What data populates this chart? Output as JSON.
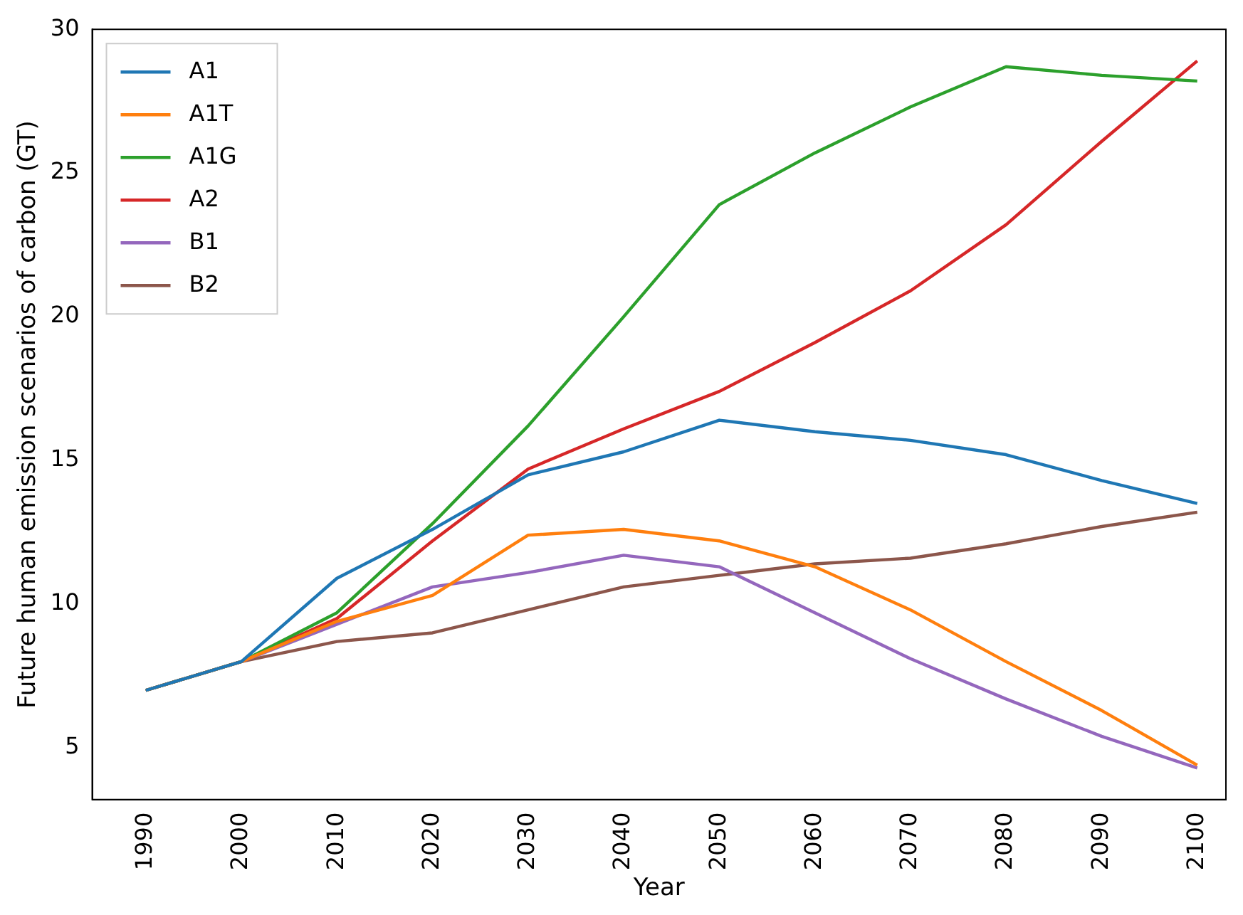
{
  "chart_data": {
    "type": "line",
    "xlabel": "Year",
    "ylabel": "Future human emission scenarios of carbon (GT)",
    "x": [
      1990,
      2000,
      2010,
      2020,
      2030,
      2040,
      2050,
      2060,
      2070,
      2080,
      2090,
      2100
    ],
    "series": [
      {
        "name": "A1",
        "color": "#1f77b4",
        "values": [
          7.0,
          8.0,
          10.9,
          12.6,
          14.5,
          15.3,
          16.4,
          16.0,
          15.7,
          15.2,
          14.3,
          13.5
        ]
      },
      {
        "name": "A1T",
        "color": "#ff7f0e",
        "values": [
          7.0,
          8.0,
          9.4,
          10.3,
          12.4,
          12.6,
          12.2,
          11.3,
          9.8,
          8.0,
          6.3,
          4.4
        ]
      },
      {
        "name": "A1G",
        "color": "#2ca02c",
        "values": [
          7.0,
          8.0,
          9.7,
          12.8,
          16.2,
          20.0,
          23.9,
          25.7,
          27.3,
          28.7,
          28.4,
          28.2
        ]
      },
      {
        "name": "A2",
        "color": "#d62728",
        "values": [
          7.0,
          8.0,
          9.5,
          12.2,
          14.7,
          16.1,
          17.4,
          19.1,
          20.9,
          23.2,
          26.1,
          28.9
        ]
      },
      {
        "name": "B1",
        "color": "#9467bd",
        "values": [
          7.0,
          8.0,
          9.3,
          10.6,
          11.1,
          11.7,
          11.3,
          9.7,
          8.1,
          6.7,
          5.4,
          4.3
        ]
      },
      {
        "name": "B2",
        "color": "#8c564b",
        "values": [
          7.0,
          8.0,
          8.7,
          9.0,
          9.8,
          10.6,
          11.0,
          11.4,
          11.6,
          12.1,
          12.7,
          13.2
        ]
      }
    ],
    "xlim": [
      1984.4,
      2103
    ],
    "xticks": [
      1990,
      2000,
      2010,
      2020,
      2030,
      2040,
      2050,
      2060,
      2070,
      2080,
      2090,
      2100
    ],
    "ylim": [
      3.2,
      30
    ],
    "yticks": [
      5,
      10,
      15,
      20,
      25,
      30
    ],
    "legend": "top left",
    "grid": false,
    "marker": "none",
    "line_style": "solid"
  }
}
